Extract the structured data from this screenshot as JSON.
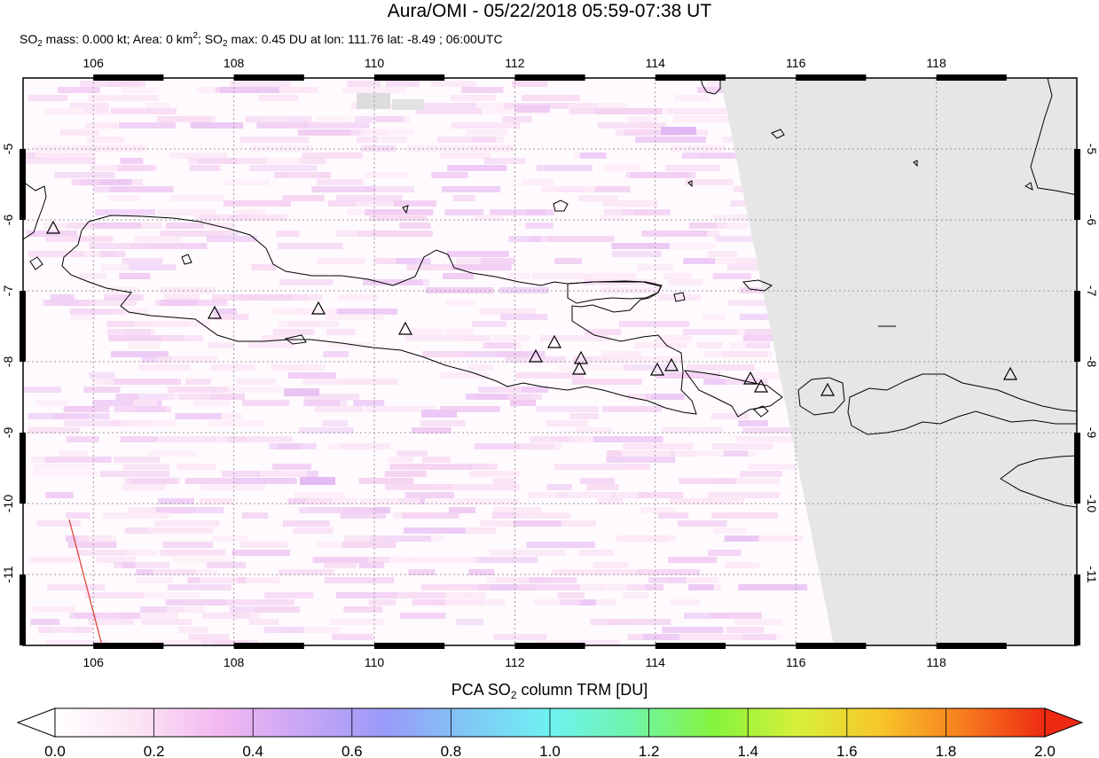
{
  "title": "Aura/OMI - 05/22/2018 05:59-07:38 UT",
  "stats": {
    "so2_mass_label": "SO",
    "so2_mass_text": " mass: 0.000 kt; Area: 0 km",
    "area_sup": "2",
    "so2_max_label": "; SO",
    "so2_max_text": " max: 0.45 DU at lon: 111.76 lat: -8.49 ; 06:00UTC",
    "sub2": "2"
  },
  "map": {
    "lon_ticks": [
      "106",
      "108",
      "110",
      "112",
      "114",
      "116",
      "118"
    ],
    "lat_ticks": [
      "-5",
      "-6",
      "-7",
      "-8",
      "-9",
      "-10",
      "-11"
    ],
    "no_data_color": "#e6e6e6",
    "coast_color": "#000000",
    "volcano_marker": "triangle"
  },
  "colorbar": {
    "title_prefix": "PCA SO",
    "title_sub": "2",
    "title_suffix": " column TRM [DU]",
    "ticks": [
      "0.0",
      "0.2",
      "0.4",
      "0.6",
      "0.8",
      "1.0",
      "1.2",
      "1.4",
      "1.6",
      "1.8",
      "2.0"
    ],
    "colors": [
      "#ffffff",
      "#fbe4f4",
      "#f2b8f0",
      "#c9a6f6",
      "#9a9af8",
      "#7fc8f5",
      "#6ef2f2",
      "#6ef5a8",
      "#86f43c",
      "#d8f03a",
      "#f7c62a",
      "#f77e1e",
      "#ee2a12"
    ]
  }
}
